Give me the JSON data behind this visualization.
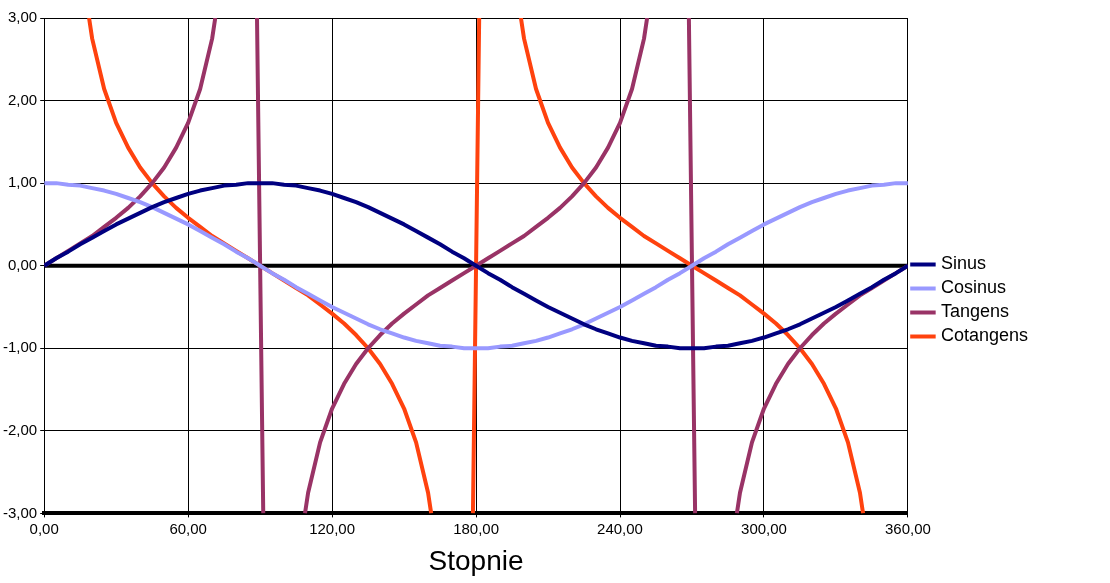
{
  "chart_data": {
    "type": "line",
    "xlabel": "Stopnie",
    "x": [
      0,
      5,
      10,
      15,
      20,
      25,
      30,
      35,
      40,
      45,
      50,
      55,
      60,
      65,
      70,
      75,
      80,
      85,
      90,
      95,
      100,
      105,
      110,
      115,
      120,
      125,
      130,
      135,
      140,
      145,
      150,
      155,
      160,
      165,
      170,
      175,
      180,
      185,
      190,
      195,
      200,
      205,
      210,
      215,
      220,
      225,
      230,
      235,
      240,
      245,
      250,
      255,
      260,
      265,
      270,
      275,
      280,
      285,
      290,
      295,
      300,
      305,
      310,
      315,
      320,
      325,
      330,
      335,
      340,
      345,
      350,
      355,
      360
    ],
    "series": [
      {
        "name": "Sinus",
        "color": "#000080",
        "values": [
          0,
          0.09,
          0.17,
          0.26,
          0.34,
          0.42,
          0.5,
          0.57,
          0.64,
          0.71,
          0.77,
          0.82,
          0.87,
          0.91,
          0.94,
          0.97,
          0.98,
          1,
          1,
          1,
          0.98,
          0.97,
          0.94,
          0.91,
          0.87,
          0.82,
          0.77,
          0.71,
          0.64,
          0.57,
          0.5,
          0.42,
          0.34,
          0.26,
          0.17,
          0.09,
          0,
          -0.09,
          -0.17,
          -0.26,
          -0.34,
          -0.42,
          -0.5,
          -0.57,
          -0.64,
          -0.71,
          -0.77,
          -0.82,
          -0.87,
          -0.91,
          -0.94,
          -0.97,
          -0.98,
          -1,
          -1,
          -1,
          -0.98,
          -0.97,
          -0.94,
          -0.91,
          -0.87,
          -0.82,
          -0.77,
          -0.71,
          -0.64,
          -0.57,
          -0.5,
          -0.42,
          -0.34,
          -0.26,
          -0.17,
          -0.09,
          0
        ]
      },
      {
        "name": "Cosinus",
        "color": "#9999ff",
        "values": [
          1,
          1,
          0.98,
          0.97,
          0.94,
          0.91,
          0.87,
          0.82,
          0.77,
          0.71,
          0.64,
          0.57,
          0.5,
          0.42,
          0.34,
          0.26,
          0.17,
          0.09,
          0,
          -0.09,
          -0.17,
          -0.26,
          -0.34,
          -0.42,
          -0.5,
          -0.57,
          -0.64,
          -0.71,
          -0.77,
          -0.82,
          -0.87,
          -0.91,
          -0.94,
          -0.97,
          -0.98,
          -1,
          -1,
          -1,
          -0.98,
          -0.97,
          -0.94,
          -0.91,
          -0.87,
          -0.82,
          -0.77,
          -0.71,
          -0.64,
          -0.57,
          -0.5,
          -0.42,
          -0.34,
          -0.26,
          -0.17,
          -0.09,
          0,
          0.09,
          0.17,
          0.26,
          0.34,
          0.42,
          0.5,
          0.57,
          0.64,
          0.71,
          0.77,
          0.82,
          0.87,
          0.91,
          0.94,
          0.97,
          0.98,
          1,
          1
        ]
      },
      {
        "name": "Tangens",
        "color": "#993366",
        "x": [
          0,
          5,
          10,
          15,
          20,
          25,
          30,
          35,
          40,
          45,
          50,
          55,
          60,
          65,
          70,
          71.3,
          80,
          88.7,
          91.3,
          100,
          108.7,
          110,
          115,
          120,
          125,
          130,
          135,
          140,
          145,
          150,
          155,
          160,
          165,
          170,
          175,
          180,
          185,
          190,
          195,
          200,
          205,
          210,
          215,
          220,
          225,
          230,
          235,
          240,
          245,
          250,
          251.3,
          260,
          268.7,
          271.3,
          280,
          288.7,
          290,
          295,
          300,
          305,
          310,
          315,
          320,
          325,
          330,
          335,
          340,
          345,
          350,
          355,
          360
        ],
        "values": [
          0,
          0.09,
          0.18,
          0.27,
          0.36,
          0.47,
          0.58,
          0.7,
          0.84,
          1,
          1.19,
          1.43,
          1.73,
          2.14,
          2.75,
          3,
          null,
          3,
          -3,
          null,
          -3,
          -2.75,
          -2.14,
          -1.73,
          -1.43,
          -1.19,
          -1,
          -0.84,
          -0.7,
          -0.58,
          -0.47,
          -0.36,
          -0.27,
          -0.18,
          -0.09,
          0,
          0.09,
          0.18,
          0.27,
          0.36,
          0.47,
          0.58,
          0.7,
          0.84,
          1,
          1.19,
          1.43,
          1.73,
          2.14,
          2.75,
          3,
          null,
          3,
          -3,
          null,
          -3,
          -2.75,
          -2.14,
          -1.73,
          -1.43,
          -1.19,
          -1,
          -0.84,
          -0.7,
          -0.58,
          -0.47,
          -0.36,
          -0.27,
          -0.18,
          -0.09,
          0
        ]
      },
      {
        "name": "Cotangens",
        "color": "#ff420e",
        "x": [
          18.7,
          20,
          25,
          30,
          35,
          40,
          45,
          50,
          55,
          60,
          65,
          70,
          75,
          80,
          85,
          90,
          95,
          100,
          105,
          110,
          115,
          120,
          125,
          130,
          135,
          140,
          145,
          150,
          155,
          160,
          161.3,
          170,
          178.7,
          181.3,
          190,
          198.7,
          200,
          205,
          210,
          215,
          220,
          225,
          230,
          235,
          240,
          245,
          250,
          255,
          260,
          265,
          270,
          275,
          280,
          285,
          290,
          295,
          300,
          305,
          310,
          315,
          320,
          325,
          330,
          335,
          340,
          341.3
        ],
        "values": [
          3,
          2.75,
          2.14,
          1.73,
          1.43,
          1.19,
          1,
          0.84,
          0.7,
          0.58,
          0.47,
          0.36,
          0.27,
          0.18,
          0.09,
          0,
          -0.09,
          -0.18,
          -0.27,
          -0.36,
          -0.47,
          -0.58,
          -0.7,
          -0.84,
          -1,
          -1.19,
          -1.43,
          -1.73,
          -2.14,
          -2.75,
          -3,
          null,
          -3,
          3,
          null,
          3,
          2.75,
          2.14,
          1.73,
          1.43,
          1.19,
          1,
          0.84,
          0.7,
          0.58,
          0.47,
          0.36,
          0.27,
          0.18,
          0.09,
          0,
          -0.09,
          -0.18,
          -0.27,
          -0.36,
          -0.47,
          -0.58,
          -0.7,
          -0.84,
          -1,
          -1.19,
          -1.43,
          -1.73,
          -2.14,
          -2.75,
          -3
        ]
      }
    ],
    "xlim": [
      0,
      360
    ],
    "xticks": [
      {
        "value": 0,
        "label": "0,00"
      },
      {
        "value": 60,
        "label": "60,00"
      },
      {
        "value": 120,
        "label": "120,00"
      },
      {
        "value": 180,
        "label": "180,00"
      },
      {
        "value": 240,
        "label": "240,00"
      },
      {
        "value": 300,
        "label": "300,00"
      },
      {
        "value": 360,
        "label": "360,00"
      }
    ],
    "ylim": [
      -3,
      3
    ],
    "yticks": [
      {
        "value": -3,
        "label": "-3,00"
      },
      {
        "value": -2,
        "label": "-2,00"
      },
      {
        "value": -1,
        "label": "-1,00"
      },
      {
        "value": 0,
        "label": "0,00"
      },
      {
        "value": 1,
        "label": "1,00"
      },
      {
        "value": 2,
        "label": "2,00"
      },
      {
        "value": 3,
        "label": "3,00"
      }
    ],
    "ref_lines": [
      {
        "axis": "y",
        "value": 0,
        "color": "#000000"
      }
    ],
    "grid": true,
    "legend": "right",
    "marker": "none",
    "line_style": "solid"
  }
}
